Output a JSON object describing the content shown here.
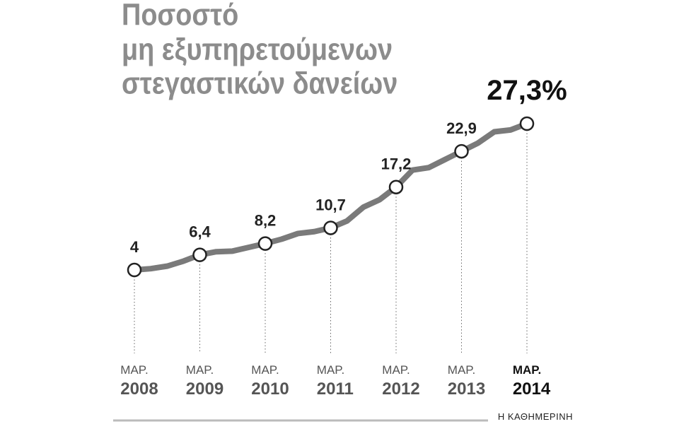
{
  "chart_data": {
    "type": "line",
    "title": [
      "Ποσοστό",
      "μη εξυπηρετούμενων",
      "στεγαστικών δανείων"
    ],
    "categories": [
      "ΜΑΡ. 2008",
      null,
      null,
      null,
      "ΜΑΡ. 2009",
      null,
      null,
      null,
      "ΜΑΡ. 2010",
      null,
      null,
      null,
      "ΜΑΡ. 2011",
      null,
      null,
      null,
      "ΜΑΡ. 2012",
      null,
      null,
      null,
      "ΜΑΡ. 2013",
      null,
      null,
      null,
      "ΜΑΡ. 2014"
    ],
    "values": [
      4,
      4.2,
      4.6,
      5.4,
      6.4,
      6.9,
      7.0,
      7.6,
      8.2,
      8.9,
      9.8,
      10.1,
      10.7,
      11.8,
      14.0,
      15.2,
      17.2,
      19.9,
      20.3,
      21.6,
      22.9,
      24.2,
      26.0,
      26.3,
      27.3
    ],
    "value_labels": [
      "4",
      null,
      null,
      null,
      "6,4",
      null,
      null,
      null,
      "8,2",
      null,
      null,
      null,
      "10,7",
      null,
      null,
      null,
      "17,2",
      null,
      null,
      null,
      "22,9",
      null,
      null,
      null,
      "27,3%"
    ],
    "color": "#7a7a7a",
    "ylim": [
      0,
      30
    ],
    "source": "Η ΚΑΘΗΜΕΡΙΝΗ"
  }
}
